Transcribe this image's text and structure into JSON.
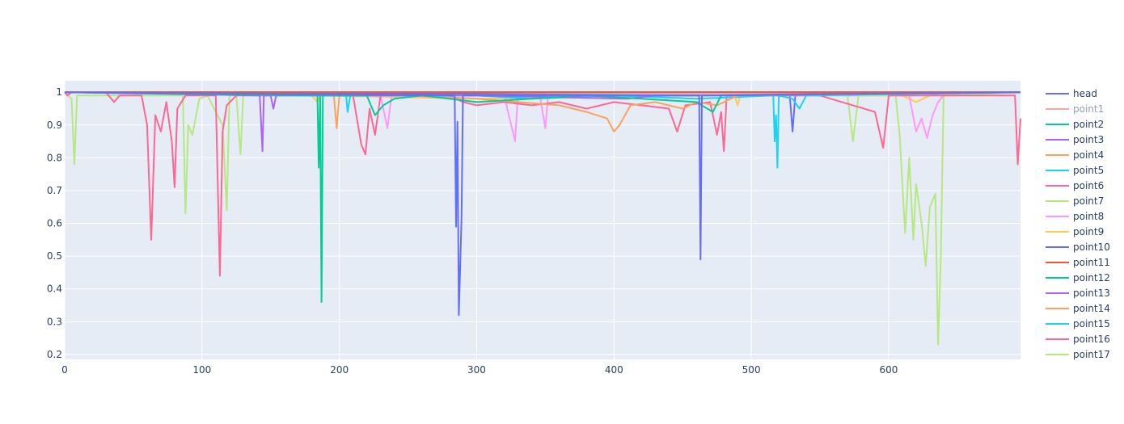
{
  "chart_data": {
    "type": "line",
    "title": "",
    "xlabel": "",
    "ylabel": "",
    "xlim": [
      0,
      696
    ],
    "ylim": [
      0.185,
      1.035
    ],
    "x_ticks": [
      0,
      100,
      200,
      300,
      400,
      500,
      600
    ],
    "y_ticks": [
      0.2,
      0.3,
      0.4,
      0.5,
      0.6,
      0.7,
      0.8,
      0.9,
      1
    ],
    "y_tick_labels": [
      "0.2",
      "0.3",
      "0.4",
      "0.5",
      "0.6",
      "0.7",
      "0.8",
      "0.9",
      "1"
    ],
    "grid": true,
    "legend_position": "right",
    "plot_background": "#e5ecf6",
    "series": [
      {
        "name": "head",
        "color": "#636efa",
        "points": [
          [
            0,
            1
          ],
          [
            284,
            0.99
          ],
          [
            285,
            0.59
          ],
          [
            286,
            0.91
          ],
          [
            287,
            0.32
          ],
          [
            289,
            0.62
          ],
          [
            290,
            0.99
          ],
          [
            300,
            0.99
          ],
          [
            462,
            0.99
          ],
          [
            463,
            0.49
          ],
          [
            464,
            0.99
          ],
          [
            696,
            1
          ]
        ]
      },
      {
        "name": "point1",
        "color": "#ef553b",
        "legend_dimmed": true,
        "points": [
          [
            0,
            1
          ],
          [
            696,
            1
          ]
        ]
      },
      {
        "name": "point2",
        "color": "#00cc96",
        "points": [
          [
            0,
            1
          ],
          [
            184,
            0.99
          ],
          [
            185,
            0.77
          ],
          [
            186,
            0.99
          ],
          [
            187,
            0.36
          ],
          [
            188,
            0.99
          ],
          [
            220,
            0.99
          ],
          [
            226,
            0.93
          ],
          [
            232,
            0.96
          ],
          [
            240,
            0.98
          ],
          [
            260,
            0.99
          ],
          [
            280,
            0.98
          ],
          [
            300,
            0.97
          ],
          [
            340,
            0.98
          ],
          [
            380,
            0.99
          ],
          [
            420,
            0.98
          ],
          [
            460,
            0.97
          ],
          [
            472,
            0.94
          ],
          [
            478,
            0.99
          ],
          [
            696,
            1
          ]
        ]
      },
      {
        "name": "point3",
        "color": "#ab63fa",
        "points": [
          [
            0,
            1
          ],
          [
            142,
            0.99
          ],
          [
            144,
            0.82
          ],
          [
            145,
            0.99
          ],
          [
            150,
            0.99
          ],
          [
            152,
            0.95
          ],
          [
            154,
            0.99
          ],
          [
            300,
            0.99
          ],
          [
            410,
            0.98
          ],
          [
            430,
            0.99
          ],
          [
            696,
            1
          ]
        ]
      },
      {
        "name": "point4",
        "color": "#ffa15a",
        "points": [
          [
            0,
            1
          ],
          [
            196,
            0.99
          ],
          [
            198,
            0.89
          ],
          [
            200,
            0.99
          ],
          [
            250,
            0.99
          ],
          [
            300,
            0.98
          ],
          [
            360,
            0.96
          ],
          [
            380,
            0.94
          ],
          [
            395,
            0.92
          ],
          [
            400,
            0.88
          ],
          [
            404,
            0.9
          ],
          [
            412,
            0.96
          ],
          [
            430,
            0.97
          ],
          [
            450,
            0.95
          ],
          [
            460,
            0.97
          ],
          [
            475,
            0.96
          ],
          [
            490,
            0.99
          ],
          [
            696,
            1
          ]
        ]
      },
      {
        "name": "point5",
        "color": "#19d3f3",
        "points": [
          [
            0,
            1
          ],
          [
            205,
            0.99
          ],
          [
            206,
            0.94
          ],
          [
            208,
            0.99
          ],
          [
            300,
            0.99
          ],
          [
            340,
            0.98
          ],
          [
            400,
            0.99
          ],
          [
            460,
            0.98
          ],
          [
            516,
            0.99
          ],
          [
            517,
            0.85
          ],
          [
            518,
            0.93
          ],
          [
            519,
            0.77
          ],
          [
            520,
            0.99
          ],
          [
            530,
            0.98
          ],
          [
            535,
            0.95
          ],
          [
            540,
            0.99
          ],
          [
            696,
            1
          ]
        ]
      },
      {
        "name": "point6",
        "color": "#ff6692",
        "points": [
          [
            0,
            1
          ],
          [
            2,
            0.99
          ],
          [
            5,
            1
          ],
          [
            30,
            1
          ],
          [
            36,
            0.97
          ],
          [
            40,
            0.99
          ],
          [
            56,
            0.99
          ],
          [
            60,
            0.9
          ],
          [
            63,
            0.55
          ],
          [
            66,
            0.93
          ],
          [
            70,
            0.88
          ],
          [
            74,
            0.97
          ],
          [
            78,
            0.85
          ],
          [
            80,
            0.71
          ],
          [
            82,
            0.95
          ],
          [
            88,
            0.99
          ],
          [
            110,
            0.99
          ],
          [
            113,
            0.44
          ],
          [
            115,
            0.88
          ],
          [
            118,
            0.96
          ],
          [
            125,
            0.99
          ],
          [
            210,
            0.99
          ],
          [
            216,
            0.84
          ],
          [
            219,
            0.81
          ],
          [
            222,
            0.95
          ],
          [
            226,
            0.87
          ],
          [
            230,
            0.99
          ],
          [
            280,
            0.99
          ],
          [
            290,
            0.97
          ],
          [
            300,
            0.96
          ],
          [
            320,
            0.97
          ],
          [
            340,
            0.96
          ],
          [
            360,
            0.97
          ],
          [
            380,
            0.95
          ],
          [
            400,
            0.97
          ],
          [
            420,
            0.96
          ],
          [
            440,
            0.95
          ],
          [
            446,
            0.88
          ],
          [
            452,
            0.96
          ],
          [
            470,
            0.97
          ],
          [
            475,
            0.87
          ],
          [
            478,
            0.94
          ],
          [
            480,
            0.82
          ],
          [
            482,
            0.99
          ],
          [
            550,
            0.99
          ],
          [
            590,
            0.94
          ],
          [
            596,
            0.83
          ],
          [
            600,
            0.99
          ],
          [
            692,
            0.99
          ],
          [
            694,
            0.78
          ],
          [
            696,
            0.92
          ]
        ]
      },
      {
        "name": "point7",
        "color": "#b6e880",
        "points": [
          [
            0,
            1
          ],
          [
            5,
            0.98
          ],
          [
            7,
            0.78
          ],
          [
            9,
            0.99
          ],
          [
            20,
            0.99
          ],
          [
            86,
            0.99
          ],
          [
            88,
            0.63
          ],
          [
            90,
            0.9
          ],
          [
            93,
            0.87
          ],
          [
            98,
            0.98
          ],
          [
            104,
            0.99
          ],
          [
            115,
            0.9
          ],
          [
            118,
            0.64
          ],
          [
            120,
            0.99
          ],
          [
            125,
            0.99
          ],
          [
            128,
            0.81
          ],
          [
            130,
            0.99
          ],
          [
            570,
            0.99
          ],
          [
            574,
            0.85
          ],
          [
            578,
            0.99
          ],
          [
            605,
            0.99
          ],
          [
            608,
            0.87
          ],
          [
            612,
            0.57
          ],
          [
            615,
            0.8
          ],
          [
            618,
            0.55
          ],
          [
            620,
            0.72
          ],
          [
            624,
            0.6
          ],
          [
            627,
            0.47
          ],
          [
            630,
            0.65
          ],
          [
            634,
            0.69
          ],
          [
            636,
            0.23
          ],
          [
            638,
            0.5
          ],
          [
            640,
            0.99
          ],
          [
            696,
            1
          ]
        ]
      },
      {
        "name": "point8",
        "color": "#ff97ff",
        "points": [
          [
            0,
            1
          ],
          [
            230,
            0.99
          ],
          [
            235,
            0.89
          ],
          [
            238,
            0.99
          ],
          [
            320,
            0.99
          ],
          [
            328,
            0.85
          ],
          [
            330,
            0.99
          ],
          [
            346,
            0.99
          ],
          [
            350,
            0.89
          ],
          [
            352,
            0.99
          ],
          [
            615,
            0.99
          ],
          [
            620,
            0.88
          ],
          [
            624,
            0.92
          ],
          [
            628,
            0.86
          ],
          [
            632,
            0.93
          ],
          [
            636,
            0.97
          ],
          [
            640,
            0.99
          ],
          [
            696,
            1
          ]
        ]
      },
      {
        "name": "point9",
        "color": "#fecb52",
        "points": [
          [
            0,
            1
          ],
          [
            180,
            0.99
          ],
          [
            184,
            0.97
          ],
          [
            186,
            0.99
          ],
          [
            300,
            0.98
          ],
          [
            488,
            0.99
          ],
          [
            490,
            0.96
          ],
          [
            492,
            0.99
          ],
          [
            610,
            0.99
          ],
          [
            620,
            0.97
          ],
          [
            630,
            0.99
          ],
          [
            696,
            1
          ]
        ]
      },
      {
        "name": "point10",
        "color": "#636efa",
        "points": [
          [
            0,
            1
          ],
          [
            528,
            0.99
          ],
          [
            530,
            0.88
          ],
          [
            532,
            0.99
          ],
          [
            696,
            1
          ]
        ]
      },
      {
        "name": "point11",
        "color": "#ef553b",
        "points": [
          [
            0,
            1
          ],
          [
            696,
            1
          ]
        ]
      },
      {
        "name": "point12",
        "color": "#00cc96",
        "points": [
          [
            0,
            1
          ],
          [
            696,
            1
          ]
        ]
      },
      {
        "name": "point13",
        "color": "#ab63fa",
        "points": [
          [
            0,
            1
          ],
          [
            696,
            1
          ]
        ]
      },
      {
        "name": "point14",
        "color": "#ffa15a",
        "points": [
          [
            0,
            1
          ],
          [
            696,
            1
          ]
        ]
      },
      {
        "name": "point15",
        "color": "#19d3f3",
        "points": [
          [
            0,
            1
          ],
          [
            696,
            1
          ]
        ]
      },
      {
        "name": "point16",
        "color": "#ff6692",
        "points": [
          [
            0,
            1
          ],
          [
            696,
            1
          ]
        ]
      },
      {
        "name": "point17",
        "color": "#b6e880",
        "points": [
          [
            0,
            1
          ],
          [
            696,
            1
          ]
        ]
      }
    ]
  }
}
